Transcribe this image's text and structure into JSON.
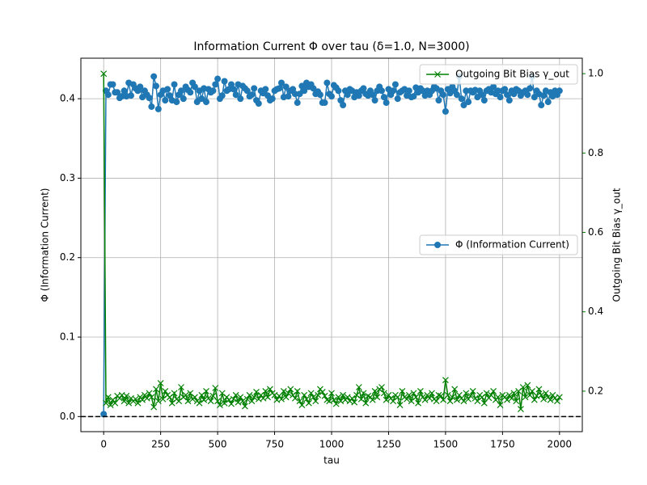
{
  "chart_data": {
    "type": "line",
    "title": "Information Current Φ over tau (δ=1.0, N=3000)",
    "xlabel": "tau",
    "ylabel": "Φ (Information Current)",
    "y2label": "Outgoing Bit Bias γ_out",
    "xlim": [
      -100,
      2100
    ],
    "xticks": [
      0,
      250,
      500,
      750,
      1000,
      1250,
      1500,
      1750,
      2000
    ],
    "ylim": [
      -0.019,
      0.451
    ],
    "yticks": [
      {
        "value": 0,
        "label": "0.0"
      },
      0.1,
      0.2,
      0.3,
      0.4
    ],
    "y2lim": [
      0.098,
      1.039
    ],
    "y2ticks": [
      0.2,
      0.4,
      0.6,
      0.8,
      {
        "value": 1,
        "label": "1.0"
      }
    ],
    "y2color": "#008000",
    "grid": true,
    "reference_line": {
      "value": 0,
      "color": "#000000",
      "style": "dashed"
    },
    "x": [
      0,
      10,
      20,
      30,
      40,
      50,
      60,
      70,
      80,
      90,
      100,
      110,
      120,
      130,
      140,
      150,
      160,
      170,
      180,
      190,
      200,
      210,
      220,
      230,
      240,
      250,
      260,
      270,
      280,
      290,
      300,
      310,
      320,
      330,
      340,
      350,
      360,
      370,
      380,
      390,
      400,
      410,
      420,
      430,
      440,
      450,
      460,
      470,
      480,
      490,
      500,
      510,
      520,
      530,
      540,
      550,
      560,
      570,
      580,
      590,
      600,
      610,
      620,
      630,
      640,
      650,
      660,
      670,
      680,
      690,
      700,
      710,
      720,
      730,
      740,
      750,
      760,
      770,
      780,
      790,
      800,
      810,
      820,
      830,
      840,
      850,
      860,
      870,
      880,
      890,
      900,
      910,
      920,
      930,
      940,
      950,
      960,
      970,
      980,
      990,
      1000,
      1010,
      1020,
      1030,
      1040,
      1050,
      1060,
      1070,
      1080,
      1090,
      1100,
      1110,
      1120,
      1130,
      1140,
      1150,
      1160,
      1170,
      1180,
      1190,
      1200,
      1210,
      1220,
      1230,
      1240,
      1250,
      1260,
      1270,
      1280,
      1290,
      1300,
      1310,
      1320,
      1330,
      1340,
      1350,
      1360,
      1370,
      1380,
      1390,
      1400,
      1410,
      1420,
      1430,
      1440,
      1450,
      1460,
      1470,
      1480,
      1490,
      1500,
      1510,
      1520,
      1530,
      1540,
      1550,
      1560,
      1570,
      1580,
      1590,
      1600,
      1610,
      1620,
      1630,
      1640,
      1650,
      1660,
      1670,
      1680,
      1690,
      1700,
      1710,
      1720,
      1730,
      1740,
      1750,
      1760,
      1770,
      1780,
      1790,
      1800,
      1810,
      1820,
      1830,
      1840,
      1850,
      1860,
      1870,
      1880,
      1890,
      1900,
      1910,
      1920,
      1930,
      1940,
      1950,
      1960,
      1970,
      1980,
      1990,
      2000
    ],
    "series": [
      {
        "name": "Φ (Information Current)",
        "color": "#1f77b4",
        "marker": "o",
        "axis": "y",
        "legend_loc": "center right",
        "values": [
          0.003,
          0.41,
          0.405,
          0.418,
          0.418,
          0.408,
          0.408,
          0.401,
          0.403,
          0.41,
          0.403,
          0.42,
          0.404,
          0.418,
          0.413,
          0.41,
          0.415,
          0.402,
          0.41,
          0.405,
          0.401,
          0.39,
          0.428,
          0.416,
          0.387,
          0.405,
          0.41,
          0.398,
          0.412,
          0.404,
          0.398,
          0.418,
          0.396,
          0.405,
          0.41,
          0.4,
          0.415,
          0.411,
          0.408,
          0.42,
          0.415,
          0.396,
          0.41,
          0.4,
          0.413,
          0.396,
          0.412,
          0.408,
          0.41,
          0.418,
          0.425,
          0.4,
          0.404,
          0.422,
          0.41,
          0.412,
          0.418,
          0.412,
          0.405,
          0.418,
          0.4,
          0.416,
          0.413,
          0.41,
          0.403,
          0.405,
          0.413,
          0.398,
          0.394,
          0.41,
          0.407,
          0.412,
          0.404,
          0.398,
          0.4,
          0.41,
          0.412,
          0.413,
          0.42,
          0.402,
          0.415,
          0.403,
          0.41,
          0.412,
          0.406,
          0.395,
          0.406,
          0.416,
          0.41,
          0.42,
          0.415,
          0.418,
          0.413,
          0.406,
          0.409,
          0.405,
          0.395,
          0.395,
          0.42,
          0.406,
          0.403,
          0.417,
          0.414,
          0.41,
          0.398,
          0.392,
          0.41,
          0.405,
          0.412,
          0.41,
          0.402,
          0.408,
          0.404,
          0.41,
          0.413,
          0.406,
          0.404,
          0.41,
          0.405,
          0.398,
          0.41,
          0.415,
          0.41,
          0.402,
          0.395,
          0.412,
          0.405,
          0.41,
          0.418,
          0.4,
          0.408,
          0.41,
          0.412,
          0.404,
          0.41,
          0.402,
          0.403,
          0.414,
          0.408,
          0.413,
          0.41,
          0.404,
          0.41,
          0.405,
          0.41,
          0.415,
          0.413,
          0.398,
          0.41,
          0.405,
          0.384,
          0.412,
          0.407,
          0.415,
          0.41,
          0.405,
          0.428,
          0.4,
          0.392,
          0.41,
          0.396,
          0.41,
          0.408,
          0.411,
          0.402,
          0.41,
          0.405,
          0.398,
          0.41,
          0.412,
          0.408,
          0.415,
          0.406,
          0.41,
          0.402,
          0.41,
          0.412,
          0.405,
          0.398,
          0.41,
          0.406,
          0.412,
          0.41,
          0.404,
          0.408,
          0.41,
          0.405,
          0.413,
          0.428,
          0.402,
          0.41,
          0.406,
          0.392,
          0.404,
          0.41,
          0.396,
          0.408,
          0.403,
          0.41,
          0.405,
          0.41
        ]
      },
      {
        "name": "Outgoing Bit Bias γ_out",
        "color": "#008000",
        "marker": "x",
        "axis": "y2",
        "legend_loc": "upper right",
        "values": [
          1.0,
          0.17,
          0.185,
          0.165,
          0.178,
          0.17,
          0.188,
          0.182,
          0.19,
          0.175,
          0.188,
          0.17,
          0.182,
          0.175,
          0.18,
          0.17,
          0.185,
          0.178,
          0.19,
          0.182,
          0.195,
          0.185,
          0.16,
          0.205,
          0.175,
          0.22,
          0.18,
          0.2,
          0.19,
          0.185,
          0.17,
          0.195,
          0.18,
          0.175,
          0.21,
          0.185,
          0.19,
          0.175,
          0.195,
          0.18,
          0.185,
          0.175,
          0.17,
          0.19,
          0.178,
          0.2,
          0.182,
          0.175,
          0.188,
          0.208,
          0.175,
          0.165,
          0.195,
          0.17,
          0.185,
          0.178,
          0.168,
          0.18,
          0.19,
          0.172,
          0.185,
          0.175,
          0.162,
          0.18,
          0.19,
          0.175,
          0.185,
          0.198,
          0.18,
          0.19,
          0.182,
          0.2,
          0.185,
          0.205,
          0.195,
          0.19,
          0.178,
          0.188,
          0.18,
          0.2,
          0.185,
          0.195,
          0.205,
          0.19,
          0.182,
          0.2,
          0.175,
          0.165,
          0.19,
          0.18,
          0.17,
          0.195,
          0.185,
          0.175,
          0.19,
          0.205,
          0.198,
          0.188,
          0.178,
          0.175,
          0.195,
          0.178,
          0.168,
          0.185,
          0.175,
          0.19,
          0.178,
          0.185,
          0.175,
          0.182,
          0.172,
          0.19,
          0.21,
          0.18,
          0.195,
          0.17,
          0.188,
          0.185,
          0.178,
          0.2,
          0.185,
          0.205,
          0.21,
          0.195,
          0.178,
          0.19,
          0.182,
          0.175,
          0.19,
          0.185,
          0.165,
          0.2,
          0.185,
          0.18,
          0.19,
          0.175,
          0.195,
          0.185,
          0.17,
          0.2,
          0.185,
          0.178,
          0.19,
          0.182,
          0.195,
          0.18,
          0.175,
          0.19,
          0.188,
          0.178,
          0.228,
          0.19,
          0.175,
          0.185,
          0.205,
          0.178,
          0.19,
          0.182,
          0.175,
          0.195,
          0.18,
          0.188,
          0.2,
          0.182,
          0.175,
          0.19,
          0.185,
          0.17,
          0.195,
          0.183,
          0.19,
          0.2,
          0.178,
          0.185,
          0.165,
          0.19,
          0.185,
          0.178,
          0.19,
          0.182,
          0.195,
          0.175,
          0.2,
          0.155,
          0.21,
          0.185,
          0.215,
          0.19,
          0.2,
          0.178,
          0.188,
          0.205,
          0.19,
          0.18,
          0.195,
          0.185,
          0.178,
          0.19,
          0.183,
          0.175,
          0.185
        ]
      }
    ]
  }
}
